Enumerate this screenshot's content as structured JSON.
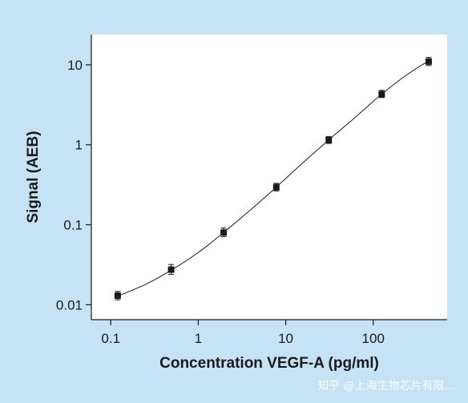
{
  "chart_data": {
    "type": "scatter",
    "xlabel": "Concentration VEGF-A (pg/ml)",
    "ylabel": "Signal (AEB)",
    "xscale": "log",
    "yscale": "log",
    "xlim": [
      0.06,
      700
    ],
    "ylim": [
      0.0065,
      24
    ],
    "xticks": [
      {
        "value": 0.1,
        "label": "0.1"
      },
      {
        "value": 1,
        "label": "1"
      },
      {
        "value": 10,
        "label": "10"
      },
      {
        "value": 100,
        "label": "100"
      }
    ],
    "yticks": [
      {
        "value": 0.01,
        "label": "0.01"
      },
      {
        "value": 0.1,
        "label": "0.1"
      },
      {
        "value": 1,
        "label": "1"
      },
      {
        "value": 10,
        "label": "10"
      }
    ],
    "grid": false,
    "legend": "none",
    "series": [
      {
        "points": [
          {
            "x": 0.12,
            "y": 0.013,
            "err_low": 0.0115,
            "err_high": 0.0147
          },
          {
            "x": 0.49,
            "y": 0.0275,
            "err_low": 0.024,
            "err_high": 0.0318
          },
          {
            "x": 1.95,
            "y": 0.08,
            "err_low": 0.071,
            "err_high": 0.091
          },
          {
            "x": 7.8,
            "y": 0.295,
            "err_low": 0.265,
            "err_high": 0.33
          },
          {
            "x": 31,
            "y": 1.15,
            "err_low": 1.04,
            "err_high": 1.27
          },
          {
            "x": 125,
            "y": 4.3,
            "err_low": 3.9,
            "err_high": 4.8
          },
          {
            "x": 430,
            "y": 11,
            "err_low": 9.8,
            "err_high": 12.4
          }
        ]
      }
    ],
    "fit_curve": [
      {
        "x": 0.12,
        "y": 0.0128
      },
      {
        "x": 0.25,
        "y": 0.018
      },
      {
        "x": 0.49,
        "y": 0.027
      },
      {
        "x": 1,
        "y": 0.045
      },
      {
        "x": 1.95,
        "y": 0.08
      },
      {
        "x": 4,
        "y": 0.155
      },
      {
        "x": 7.8,
        "y": 0.295
      },
      {
        "x": 15,
        "y": 0.57
      },
      {
        "x": 31,
        "y": 1.15
      },
      {
        "x": 62,
        "y": 2.2
      },
      {
        "x": 125,
        "y": 4.3
      },
      {
        "x": 250,
        "y": 7.7
      },
      {
        "x": 430,
        "y": 11.2
      }
    ],
    "colors": {
      "marker": "#1a1a1a",
      "line": "#1a1a1a",
      "plot_bg": "#ffffff",
      "page_bg": "#c6e3f5"
    }
  },
  "watermark": "知乎 @上海生物芯片有限..."
}
